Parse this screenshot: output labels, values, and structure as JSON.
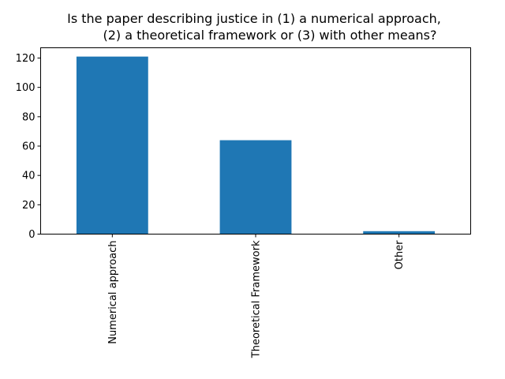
{
  "chart_data": {
    "type": "bar",
    "title_lines": [
      "Is the paper describing justice in (1) a numerical approach,",
      "(2) a theoretical framework or (3) with other means?"
    ],
    "categories": [
      "Numerical approach",
      "Theoretical Framework",
      "Other"
    ],
    "values": [
      121,
      64,
      2
    ],
    "xlabel": "",
    "ylabel": "",
    "ylim": [
      0,
      127
    ],
    "yticks": [
      0,
      20,
      40,
      60,
      80,
      100,
      120
    ],
    "grid": false,
    "legend": "none",
    "bar_color": "#1f77b4"
  }
}
